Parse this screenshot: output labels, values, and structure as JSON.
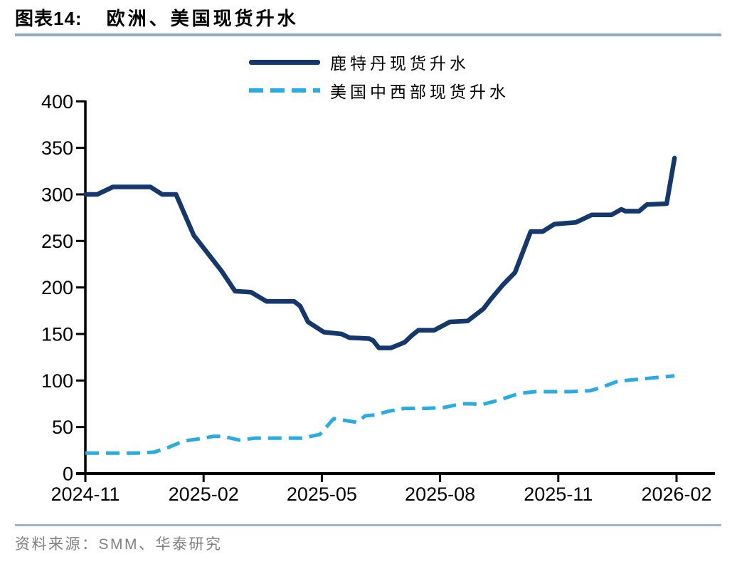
{
  "figure": {
    "label": "图表14:",
    "title": "欧洲、美国现货升水",
    "source_label": "资料来源：",
    "source_text": "SMM、华泰研究"
  },
  "legend": [
    {
      "name": "鹿特丹现货升水",
      "style": "solid",
      "color": "#14386E"
    },
    {
      "name": "美国中西部现货升水",
      "style": "dashed",
      "color": "#29ACE3"
    }
  ],
  "colors": {
    "rotterdam_line": "#14386E",
    "us_midwest_line": "#29ACE3",
    "axis": "#000000",
    "rule": "#9FB4CD",
    "source_text": "#808080"
  },
  "chart_data": {
    "type": "line",
    "title": "欧洲、美国现货升水",
    "xlabel": "",
    "ylabel": "",
    "x_unit": "months since 2024-11",
    "x_tick_positions": [
      0,
      3,
      6,
      9,
      12,
      15
    ],
    "x_tick_labels": [
      "2024-11",
      "2025-02",
      "2025-05",
      "2025-08",
      "2025-11",
      "2026-02"
    ],
    "ylim": [
      0,
      400
    ],
    "y_ticks": [
      0,
      50,
      100,
      150,
      200,
      250,
      300,
      350,
      400
    ],
    "grid": false,
    "legend_position": "top-center",
    "series": [
      {
        "name": "鹿特丹现货升水",
        "color": "#14386E",
        "dash": false,
        "points": [
          [
            0,
            300
          ],
          [
            0.3,
            300
          ],
          [
            0.7,
            308
          ],
          [
            1.65,
            308
          ],
          [
            1.95,
            300
          ],
          [
            2.3,
            300
          ],
          [
            2.75,
            256
          ],
          [
            3.1,
            237
          ],
          [
            3.45,
            218
          ],
          [
            3.8,
            196
          ],
          [
            4.2,
            195
          ],
          [
            4.6,
            185
          ],
          [
            5.3,
            185
          ],
          [
            5.45,
            180
          ],
          [
            5.65,
            163
          ],
          [
            6.05,
            152
          ],
          [
            6.5,
            150
          ],
          [
            6.7,
            146
          ],
          [
            7.2,
            145
          ],
          [
            7.3,
            143
          ],
          [
            7.45,
            135
          ],
          [
            7.75,
            135
          ],
          [
            8.1,
            141
          ],
          [
            8.3,
            149
          ],
          [
            8.45,
            154
          ],
          [
            8.85,
            154
          ],
          [
            9.25,
            163
          ],
          [
            9.7,
            164
          ],
          [
            10.1,
            177
          ],
          [
            10.3,
            188
          ],
          [
            10.6,
            203
          ],
          [
            10.9,
            216
          ],
          [
            11.3,
            260
          ],
          [
            11.6,
            260
          ],
          [
            11.9,
            268
          ],
          [
            12.45,
            270
          ],
          [
            12.85,
            278
          ],
          [
            13.35,
            278
          ],
          [
            13.6,
            284
          ],
          [
            13.7,
            282
          ],
          [
            14.05,
            282
          ],
          [
            14.25,
            289
          ],
          [
            14.75,
            290
          ],
          [
            14.95,
            339
          ]
        ]
      },
      {
        "name": "美国中西部现货升水",
        "color": "#29ACE3",
        "dash": true,
        "points": [
          [
            0,
            22
          ],
          [
            1.3,
            22
          ],
          [
            1.75,
            23
          ],
          [
            2.1,
            28
          ],
          [
            2.5,
            35
          ],
          [
            3.0,
            38
          ],
          [
            3.25,
            40
          ],
          [
            3.5,
            40
          ],
          [
            3.9,
            36
          ],
          [
            4.3,
            38
          ],
          [
            5.5,
            38
          ],
          [
            5.95,
            42
          ],
          [
            6.3,
            59
          ],
          [
            6.6,
            57
          ],
          [
            6.9,
            55
          ],
          [
            7.1,
            62
          ],
          [
            7.35,
            63
          ],
          [
            7.7,
            67
          ],
          [
            8.1,
            70
          ],
          [
            8.65,
            70
          ],
          [
            9.1,
            71
          ],
          [
            9.55,
            75
          ],
          [
            9.8,
            75
          ],
          [
            10.05,
            74
          ],
          [
            10.5,
            79
          ],
          [
            11.0,
            86
          ],
          [
            11.4,
            88
          ],
          [
            12.3,
            88
          ],
          [
            12.8,
            89
          ],
          [
            13.05,
            92
          ],
          [
            13.5,
            99
          ],
          [
            13.95,
            101
          ],
          [
            14.45,
            103
          ],
          [
            14.95,
            105
          ]
        ]
      }
    ]
  }
}
